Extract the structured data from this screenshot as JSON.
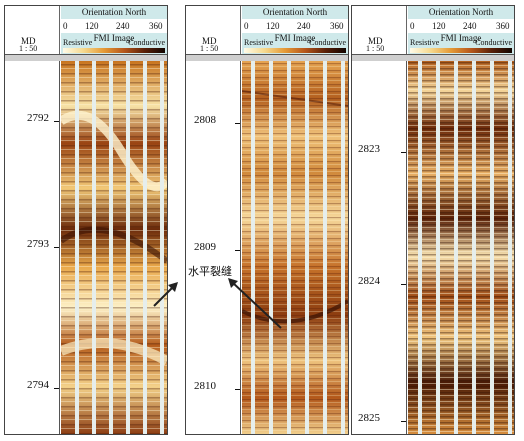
{
  "header": {
    "md_label": "MD",
    "md_scale": "1 : 50",
    "orientation": "Orientation North",
    "ticks": [
      "0",
      "120",
      "240",
      "360"
    ],
    "fmi_title": "FMI Image",
    "resistive": "Resistive",
    "conductive": "Conductive"
  },
  "panels": [
    {
      "depths": [
        "2792",
        "2793",
        "2794"
      ]
    },
    {
      "depths": [
        "2808",
        "2809",
        "2810"
      ]
    },
    {
      "depths": [
        "2823",
        "2824",
        "2825"
      ]
    }
  ],
  "annotation": "水平裂缝",
  "colors": {
    "header_bg": "#cfe9ea",
    "pad_gap": "#e6eeec",
    "resistive": "#fdf1c7",
    "conductive": "#3a1204"
  }
}
